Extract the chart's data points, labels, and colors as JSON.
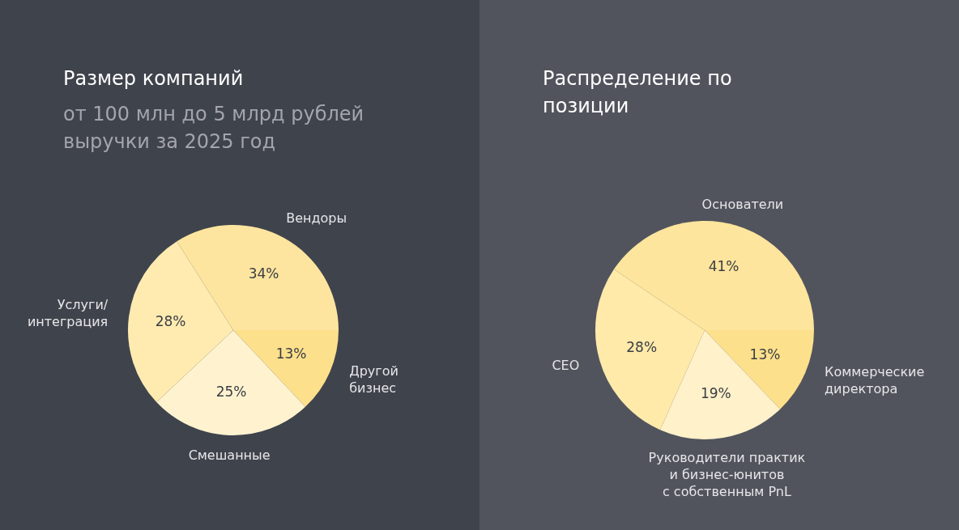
{
  "chart_data": [
    {
      "type": "pie",
      "title": "Размер компаний",
      "subtitle": "от 100 млн до 5 млрд рублей выручки за 2025 год",
      "categories": [
        "Другой\nбизнес",
        "Смешанные",
        "Услуги/\nинтеграция",
        "Вендоры"
      ],
      "values": [
        13,
        25,
        28,
        34
      ],
      "colors": [
        "#fde08b",
        "#fff3cf",
        "#ffebb0",
        "#fee59f"
      ],
      "value_labels": [
        "13%",
        "25%",
        "28%",
        "34%"
      ],
      "legend": false
    },
    {
      "type": "pie",
      "title": "Распределение по позиции",
      "categories": [
        "Коммерческие\nдиректора",
        "Руководители практик\nи бизнес-юнитов\nс собственным PnL",
        "CEO",
        "Основатели"
      ],
      "values": [
        13,
        19,
        28,
        41
      ],
      "colors": [
        "#fde08b",
        "#fff1ca",
        "#ffeaaa",
        "#fee59d"
      ],
      "value_labels": [
        "13%",
        "19%",
        "28%",
        "41%"
      ],
      "legend": false
    }
  ]
}
